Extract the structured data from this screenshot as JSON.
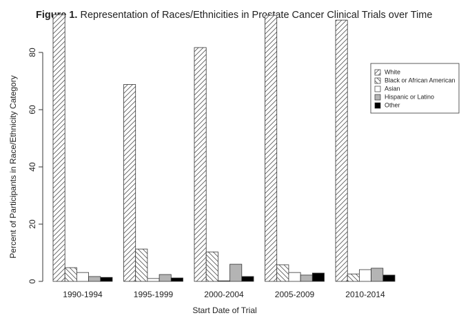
{
  "chart_data": {
    "type": "bar",
    "figure_label": "Figure 1.",
    "title": "Representation of Races/Ethnicities in Prostate Cancer Clinical Trials over Time",
    "x_label": "Start Date of Trial",
    "y_label": "Percent of Participants in Race/Ethnicity Category",
    "categories": [
      "1990-1994",
      "1995-1999",
      "2000-2004",
      "2005-2009",
      "2010-2014"
    ],
    "series": [
      {
        "name": "White",
        "color": "#ffffff",
        "hatch": "forward",
        "values": [
          93.2,
          68.8,
          81.7,
          93.0,
          91.3
        ]
      },
      {
        "name": "Black or African American",
        "color": "#ffffff",
        "hatch": "backward",
        "values": [
          4.8,
          11.3,
          10.3,
          5.8,
          2.6
        ]
      },
      {
        "name": "Asian",
        "color": "#ffffff",
        "values": [
          3.1,
          1.0,
          0.2,
          3.1,
          4.1
        ]
      },
      {
        "name": "Hispanic or Latino",
        "color": "#b4b4b4",
        "values": [
          1.7,
          2.4,
          6.0,
          2.2,
          4.6
        ]
      },
      {
        "name": "Other",
        "color": "#000000",
        "values": [
          1.4,
          1.2,
          1.7,
          2.9,
          2.2
        ]
      }
    ],
    "ylim": [
      0,
      93.5
    ],
    "yticks": [
      0,
      20,
      40,
      60,
      80
    ],
    "legend": "top-right"
  }
}
